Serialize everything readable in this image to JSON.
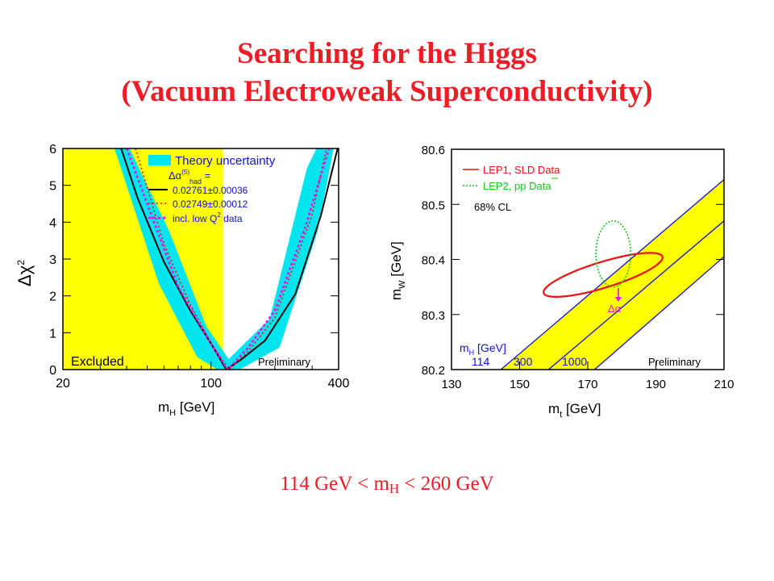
{
  "title_line1": "Searching for the Higgs",
  "title_line2": "(Vacuum Electroweak Superconductivity)",
  "footer": {
    "left": "114 GeV < m",
    "sub": "H",
    "right": " < 260 GeV"
  },
  "colors": {
    "title": "#ee1c25",
    "band": "#ffff00",
    "theory": "#00e5ee",
    "red": "#ee1111",
    "green": "#11cc11",
    "magenta": "#ee11ee",
    "blue": "#1111dd"
  },
  "chart_data": [
    {
      "type": "line",
      "x_scale": "log",
      "xlim": [
        20,
        400
      ],
      "ylim": [
        0,
        6
      ],
      "xticks": [
        20,
        100,
        400
      ],
      "yticks": [
        0,
        1,
        2,
        3,
        4,
        5,
        6
      ],
      "xlabel": {
        "main": "m",
        "sub": "H",
        "unit": "[GeV]"
      },
      "ylabel": {
        "main": "Δχ",
        "sup": "2"
      },
      "excluded_region": {
        "x": [
          20,
          114
        ],
        "label": "Excluded"
      },
      "preliminary_label": "Preliminary",
      "legend": {
        "theory_label": "Theory uncertainty",
        "alpha_label": "Δα",
        "alpha_sup": "(5)",
        "alpha_sub": "had",
        "alpha_eq": "=",
        "entries": [
          "0.02761±0.00036",
          "0.02749±0.00012",
          "incl. low Q",
          "data"
        ],
        "entry_q_sup": "2"
      },
      "series": [
        {
          "name": "Theory uncertainty",
          "x": [
            35,
            60,
            90,
            120,
            200,
            300,
            370
          ],
          "y_low": [
            6.5,
            2.4,
            0.45,
            0,
            0.7,
            3.8,
            6.5
          ],
          "y_high": [
            6.5,
            3.7,
            1.1,
            0.05,
            1.3,
            5.4,
            6.5
          ]
        },
        {
          "name": "0.02761±0.00036",
          "x": [
            37.7,
            45,
            60,
            80,
            100,
            118,
            140,
            180,
            250,
            330,
            400
          ],
          "y": [
            6.0,
            4.66,
            2.92,
            1.59,
            0.71,
            0.0,
            0.29,
            0.79,
            2.05,
            4.18,
            6.11
          ]
        },
        {
          "name": "0.02749±0.00012",
          "x": [
            44,
            60,
            80,
            100,
            122,
            150,
            200,
            300,
            350
          ],
          "y": [
            6.0,
            3.4,
            1.75,
            0.72,
            0.0,
            0.5,
            1.4,
            4.2,
            6.0
          ]
        },
        {
          "name": "incl. low Q2 data",
          "x": [
            40,
            50,
            70,
            100,
            120,
            150,
            200,
            280,
            360
          ],
          "y": [
            6.0,
            4.5,
            2.25,
            0.7,
            0.0,
            0.6,
            1.6,
            3.9,
            6.0
          ]
        }
      ]
    },
    {
      "type": "line",
      "xlim": [
        130,
        210
      ],
      "ylim": [
        80.2,
        80.6
      ],
      "xticks": [
        130,
        150,
        170,
        190,
        210
      ],
      "yticks": [
        80.2,
        80.3,
        80.4,
        80.5,
        80.6
      ],
      "xlabel": {
        "main": "m",
        "sub": "t",
        "unit": "[GeV]"
      },
      "ylabel": {
        "main": "m",
        "sub": "W",
        "unit": "[GeV]"
      },
      "preliminary_label": "Preliminary",
      "legend": {
        "entries": [
          "LEP1, SLD Data",
          "LEP2, pp Data"
        ],
        "cl": "68% CL"
      },
      "mh_label": {
        "main": "m",
        "sub": "H",
        "unit": "[GeV]",
        "values": [
          "114",
          "300",
          "1000"
        ]
      },
      "delta_alpha_label": "Δα",
      "band": [
        {
          "name": "114",
          "x": [
            144.5,
            210
          ],
          "y": [
            80.2,
            80.545
          ]
        },
        {
          "name": "1000",
          "x": [
            172,
            210
          ],
          "y": [
            80.2,
            80.405
          ]
        }
      ],
      "series": [
        {
          "name": "114",
          "x": [
            144.5,
            210
          ],
          "y": [
            80.2,
            80.545
          ]
        },
        {
          "name": "300",
          "x": [
            158.5,
            210
          ],
          "y": [
            80.2,
            80.47
          ]
        },
        {
          "name": "1000",
          "x": [
            172,
            210
          ],
          "y": [
            80.2,
            80.405
          ]
        }
      ],
      "ellipses": [
        {
          "name": "LEP1, SLD Data",
          "center": [
            174.5,
            80.372
          ],
          "extent_x": [
            157,
            192
          ],
          "extent_y": [
            80.322,
            80.412
          ]
        },
        {
          "name": "LEP2, pp Data",
          "center": [
            177.5,
            80.41
          ],
          "extent_x": [
            172.8,
            183
          ],
          "extent_y": [
            80.35,
            80.47
          ]
        }
      ]
    }
  ]
}
